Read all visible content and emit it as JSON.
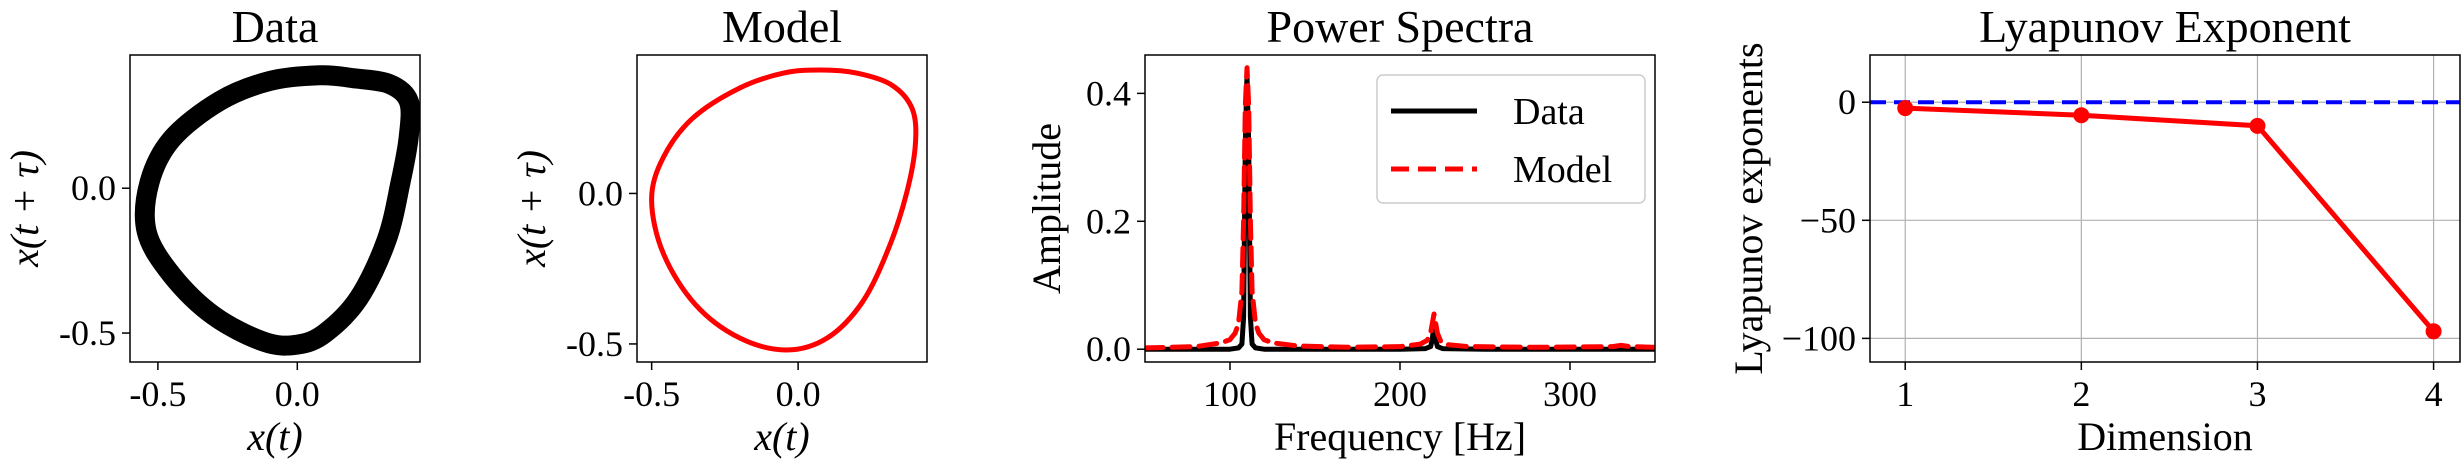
{
  "chart_data": [
    {
      "type": "line",
      "title": "Data",
      "xlabel": "x(t)",
      "ylabel": "x(t + τ)",
      "xlim": [
        -0.6,
        0.44
      ],
      "ylim": [
        -0.6,
        0.46
      ],
      "xticks": [
        -0.5,
        0.0
      ],
      "xtick_labels": [
        "-0.5",
        "0.0"
      ],
      "yticks": [
        0.0,
        -0.5
      ],
      "ytick_labels": [
        "0.0",
        "-0.5"
      ],
      "grid": false,
      "series": [
        {
          "color": "#000000",
          "closed": true,
          "points": [
            [
              0.08,
              0.39
            ],
            [
              0.2,
              0.38
            ],
            [
              0.33,
              0.36
            ],
            [
              0.4,
              0.3
            ],
            [
              0.4,
              0.18
            ],
            [
              0.37,
              0.02
            ],
            [
              0.32,
              -0.18
            ],
            [
              0.22,
              -0.38
            ],
            [
              0.1,
              -0.5
            ],
            [
              0.0,
              -0.54
            ],
            [
              -0.12,
              -0.53
            ],
            [
              -0.3,
              -0.44
            ],
            [
              -0.45,
              -0.3
            ],
            [
              -0.54,
              -0.15
            ],
            [
              -0.53,
              0.02
            ],
            [
              -0.45,
              0.17
            ],
            [
              -0.28,
              0.3
            ],
            [
              -0.1,
              0.37
            ]
          ]
        }
      ]
    },
    {
      "type": "line",
      "title": "Model",
      "xlabel": "x(t)",
      "ylabel": "x(t + τ)",
      "xlim": [
        -0.55,
        0.44
      ],
      "ylim": [
        -0.56,
        0.46
      ],
      "xticks": [
        -0.5,
        0.0
      ],
      "xtick_labels": [
        "-0.5",
        "0.0"
      ],
      "yticks": [
        0.0,
        -0.5
      ],
      "ytick_labels": [
        "0.0",
        "-0.5"
      ],
      "grid": false,
      "series": [
        {
          "color": "#ff0000",
          "closed": true,
          "points": [
            [
              0.08,
              0.41
            ],
            [
              0.2,
              0.4
            ],
            [
              0.32,
              0.36
            ],
            [
              0.39,
              0.28
            ],
            [
              0.4,
              0.16
            ],
            [
              0.37,
              0.0
            ],
            [
              0.31,
              -0.18
            ],
            [
              0.22,
              -0.36
            ],
            [
              0.1,
              -0.48
            ],
            [
              -0.04,
              -0.52
            ],
            [
              -0.2,
              -0.48
            ],
            [
              -0.35,
              -0.37
            ],
            [
              -0.46,
              -0.2
            ],
            [
              -0.5,
              -0.02
            ],
            [
              -0.46,
              0.12
            ],
            [
              -0.36,
              0.25
            ],
            [
              -0.2,
              0.35
            ],
            [
              -0.05,
              0.4
            ]
          ]
        }
      ]
    },
    {
      "type": "line",
      "title": "Power Spectra",
      "xlabel": "Frequency [Hz]",
      "ylabel": "Amplitude",
      "xlim": [
        50,
        350
      ],
      "ylim": [
        -0.02,
        0.46
      ],
      "xticks": [
        100,
        200,
        300
      ],
      "xtick_labels": [
        "100",
        "200",
        "300"
      ],
      "yticks": [
        0.0,
        0.2,
        0.4
      ],
      "ytick_labels": [
        "0.0",
        "0.2",
        "0.4"
      ],
      "grid": false,
      "legend": "top-right",
      "series": [
        {
          "name": "Data",
          "color": "#000000",
          "dash": "solid",
          "x": [
            50,
            80,
            100,
            105,
            107,
            108,
            109,
            110,
            111,
            112,
            113,
            115,
            120,
            150,
            200,
            215,
            218,
            219,
            220,
            221,
            222,
            225,
            250,
            300,
            330,
            350
          ],
          "y": [
            0.0,
            0.0,
            0.0,
            0.002,
            0.008,
            0.05,
            0.32,
            0.43,
            0.32,
            0.05,
            0.008,
            0.002,
            0.0,
            0.0,
            0.0,
            0.001,
            0.004,
            0.015,
            0.04,
            0.015,
            0.004,
            0.001,
            0.0,
            0.0,
            0.0,
            0.0
          ]
        },
        {
          "name": "Model",
          "color": "#ff0000",
          "dash": "dashed",
          "x": [
            50,
            80,
            95,
            100,
            103,
            105,
            107,
            108,
            109,
            110,
            111,
            112,
            113,
            115,
            117,
            120,
            125,
            140,
            170,
            200,
            212,
            216,
            218,
            219,
            220,
            221,
            222,
            224,
            228,
            240,
            280,
            325,
            330,
            335,
            350
          ],
          "y": [
            0.002,
            0.004,
            0.01,
            0.015,
            0.025,
            0.04,
            0.09,
            0.2,
            0.38,
            0.44,
            0.38,
            0.2,
            0.09,
            0.04,
            0.025,
            0.015,
            0.01,
            0.005,
            0.003,
            0.004,
            0.008,
            0.014,
            0.025,
            0.04,
            0.055,
            0.04,
            0.025,
            0.012,
            0.007,
            0.004,
            0.003,
            0.004,
            0.006,
            0.004,
            0.003
          ]
        }
      ]
    },
    {
      "type": "line",
      "title": "Lyapunov Exponent",
      "xlabel": "Dimension",
      "ylabel": "Lyapunov exponents",
      "xlim": [
        0.8,
        4.15
      ],
      "ylim": [
        -110,
        20
      ],
      "xticks": [
        1,
        2,
        3,
        4
      ],
      "xtick_labels": [
        "1",
        "2",
        "3",
        "4"
      ],
      "yticks": [
        0,
        -50,
        -100
      ],
      "ytick_labels": [
        "0",
        "−50",
        "−100"
      ],
      "grid": true,
      "reference_line": {
        "y": 0,
        "color": "#0000ff",
        "dash": "dashed"
      },
      "series": [
        {
          "color": "#ff0000",
          "marker": "circle",
          "x": [
            1,
            2,
            3,
            4
          ],
          "y": [
            -2.5,
            -5.5,
            -10,
            -97
          ]
        }
      ]
    }
  ]
}
